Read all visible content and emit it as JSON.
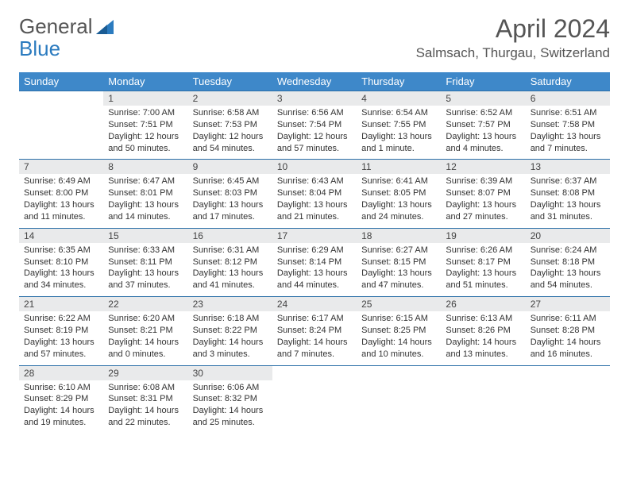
{
  "logo": {
    "word1": "General",
    "word2": "Blue"
  },
  "title": "April 2024",
  "location": "Salmsach, Thurgau, Switzerland",
  "colors": {
    "header_bg": "#3e88c9",
    "header_text": "#ffffff",
    "daynum_bg": "#e9eaeb",
    "row_border": "#2b6fa8",
    "text": "#333333",
    "logo_gray": "#555555",
    "logo_blue": "#2b7bbf"
  },
  "weekdays": [
    "Sunday",
    "Monday",
    "Tuesday",
    "Wednesday",
    "Thursday",
    "Friday",
    "Saturday"
  ],
  "weeks": [
    [
      null,
      {
        "n": "1",
        "sr": "Sunrise: 7:00 AM",
        "ss": "Sunset: 7:51 PM",
        "dl": "Daylight: 12 hours and 50 minutes."
      },
      {
        "n": "2",
        "sr": "Sunrise: 6:58 AM",
        "ss": "Sunset: 7:53 PM",
        "dl": "Daylight: 12 hours and 54 minutes."
      },
      {
        "n": "3",
        "sr": "Sunrise: 6:56 AM",
        "ss": "Sunset: 7:54 PM",
        "dl": "Daylight: 12 hours and 57 minutes."
      },
      {
        "n": "4",
        "sr": "Sunrise: 6:54 AM",
        "ss": "Sunset: 7:55 PM",
        "dl": "Daylight: 13 hours and 1 minute."
      },
      {
        "n": "5",
        "sr": "Sunrise: 6:52 AM",
        "ss": "Sunset: 7:57 PM",
        "dl": "Daylight: 13 hours and 4 minutes."
      },
      {
        "n": "6",
        "sr": "Sunrise: 6:51 AM",
        "ss": "Sunset: 7:58 PM",
        "dl": "Daylight: 13 hours and 7 minutes."
      }
    ],
    [
      {
        "n": "7",
        "sr": "Sunrise: 6:49 AM",
        "ss": "Sunset: 8:00 PM",
        "dl": "Daylight: 13 hours and 11 minutes."
      },
      {
        "n": "8",
        "sr": "Sunrise: 6:47 AM",
        "ss": "Sunset: 8:01 PM",
        "dl": "Daylight: 13 hours and 14 minutes."
      },
      {
        "n": "9",
        "sr": "Sunrise: 6:45 AM",
        "ss": "Sunset: 8:03 PM",
        "dl": "Daylight: 13 hours and 17 minutes."
      },
      {
        "n": "10",
        "sr": "Sunrise: 6:43 AM",
        "ss": "Sunset: 8:04 PM",
        "dl": "Daylight: 13 hours and 21 minutes."
      },
      {
        "n": "11",
        "sr": "Sunrise: 6:41 AM",
        "ss": "Sunset: 8:05 PM",
        "dl": "Daylight: 13 hours and 24 minutes."
      },
      {
        "n": "12",
        "sr": "Sunrise: 6:39 AM",
        "ss": "Sunset: 8:07 PM",
        "dl": "Daylight: 13 hours and 27 minutes."
      },
      {
        "n": "13",
        "sr": "Sunrise: 6:37 AM",
        "ss": "Sunset: 8:08 PM",
        "dl": "Daylight: 13 hours and 31 minutes."
      }
    ],
    [
      {
        "n": "14",
        "sr": "Sunrise: 6:35 AM",
        "ss": "Sunset: 8:10 PM",
        "dl": "Daylight: 13 hours and 34 minutes."
      },
      {
        "n": "15",
        "sr": "Sunrise: 6:33 AM",
        "ss": "Sunset: 8:11 PM",
        "dl": "Daylight: 13 hours and 37 minutes."
      },
      {
        "n": "16",
        "sr": "Sunrise: 6:31 AM",
        "ss": "Sunset: 8:12 PM",
        "dl": "Daylight: 13 hours and 41 minutes."
      },
      {
        "n": "17",
        "sr": "Sunrise: 6:29 AM",
        "ss": "Sunset: 8:14 PM",
        "dl": "Daylight: 13 hours and 44 minutes."
      },
      {
        "n": "18",
        "sr": "Sunrise: 6:27 AM",
        "ss": "Sunset: 8:15 PM",
        "dl": "Daylight: 13 hours and 47 minutes."
      },
      {
        "n": "19",
        "sr": "Sunrise: 6:26 AM",
        "ss": "Sunset: 8:17 PM",
        "dl": "Daylight: 13 hours and 51 minutes."
      },
      {
        "n": "20",
        "sr": "Sunrise: 6:24 AM",
        "ss": "Sunset: 8:18 PM",
        "dl": "Daylight: 13 hours and 54 minutes."
      }
    ],
    [
      {
        "n": "21",
        "sr": "Sunrise: 6:22 AM",
        "ss": "Sunset: 8:19 PM",
        "dl": "Daylight: 13 hours and 57 minutes."
      },
      {
        "n": "22",
        "sr": "Sunrise: 6:20 AM",
        "ss": "Sunset: 8:21 PM",
        "dl": "Daylight: 14 hours and 0 minutes."
      },
      {
        "n": "23",
        "sr": "Sunrise: 6:18 AM",
        "ss": "Sunset: 8:22 PM",
        "dl": "Daylight: 14 hours and 3 minutes."
      },
      {
        "n": "24",
        "sr": "Sunrise: 6:17 AM",
        "ss": "Sunset: 8:24 PM",
        "dl": "Daylight: 14 hours and 7 minutes."
      },
      {
        "n": "25",
        "sr": "Sunrise: 6:15 AM",
        "ss": "Sunset: 8:25 PM",
        "dl": "Daylight: 14 hours and 10 minutes."
      },
      {
        "n": "26",
        "sr": "Sunrise: 6:13 AM",
        "ss": "Sunset: 8:26 PM",
        "dl": "Daylight: 14 hours and 13 minutes."
      },
      {
        "n": "27",
        "sr": "Sunrise: 6:11 AM",
        "ss": "Sunset: 8:28 PM",
        "dl": "Daylight: 14 hours and 16 minutes."
      }
    ],
    [
      {
        "n": "28",
        "sr": "Sunrise: 6:10 AM",
        "ss": "Sunset: 8:29 PM",
        "dl": "Daylight: 14 hours and 19 minutes."
      },
      {
        "n": "29",
        "sr": "Sunrise: 6:08 AM",
        "ss": "Sunset: 8:31 PM",
        "dl": "Daylight: 14 hours and 22 minutes."
      },
      {
        "n": "30",
        "sr": "Sunrise: 6:06 AM",
        "ss": "Sunset: 8:32 PM",
        "dl": "Daylight: 14 hours and 25 minutes."
      },
      null,
      null,
      null,
      null
    ]
  ]
}
